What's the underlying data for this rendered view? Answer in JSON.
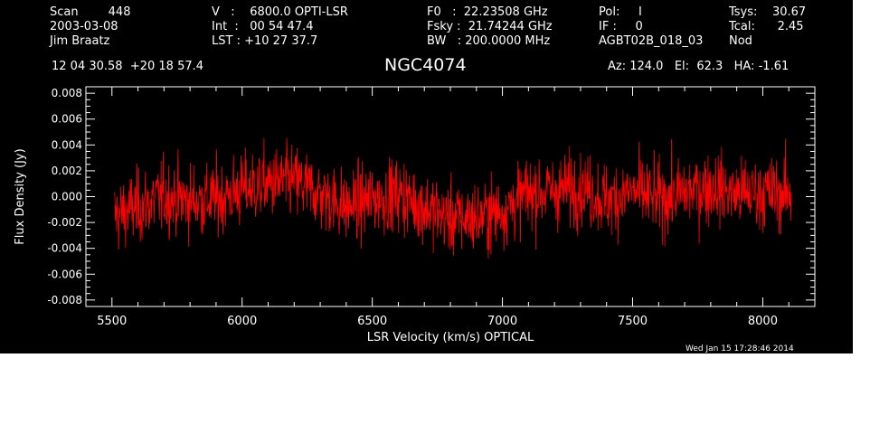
{
  "header": {
    "col1": [
      "Scan        448",
      "2003-03-08",
      "Jim Braatz"
    ],
    "col2": [
      "V   :    6800.0 OPTI-LSR",
      "Int  :   00 54 47.4",
      "LST : +10 27 37.7"
    ],
    "col3": [
      "F0   :  22.23508 GHz",
      "Fsky :  21.74244 GHz",
      "BW   : 200.0000 MHz"
    ],
    "col4": [
      "Pol:     I",
      "IF :     0",
      "AGBT02B_018_03"
    ],
    "col5": [
      "Tsys:    30.67",
      "Tcal:      2.45",
      "Nod"
    ],
    "coords": "12 04 30.58  +20 18 57.4",
    "source": "NGC4074",
    "pointing": "Az: 124.0   El:  62.3   HA: -1.61",
    "timestamp": "Wed Jan 15 17:28:46 2014"
  },
  "colors": {
    "background": "#000000",
    "foreground": "#ffffff",
    "series": "#ff0000"
  },
  "chart_data": {
    "type": "line",
    "xlabel": "LSR Velocity (km/s) OPTICAL",
    "ylabel": "Flux Density (Jy)",
    "xlim": [
      5400,
      8200
    ],
    "ylim": [
      -0.0085,
      0.0085
    ],
    "x_ticks": [
      5500,
      6000,
      6500,
      7000,
      7500,
      8000
    ],
    "y_ticks": [
      -0.008,
      -0.006,
      -0.004,
      -0.002,
      0.0,
      0.002,
      0.004,
      0.006,
      0.008
    ],
    "y_tick_labels": [
      "-0.008",
      "-0.006",
      "-0.004",
      "-0.002",
      "0.000",
      "0.002",
      "0.004",
      "0.006",
      "0.008"
    ],
    "grid": false,
    "series": [
      {
        "x_range": [
          5510,
          8110
        ],
        "noise_rms": 0.0014,
        "baseline": {
          "x": [
            5510,
            5600,
            5700,
            5800,
            5900,
            6000,
            6100,
            6200,
            6300,
            6400,
            6500,
            6600,
            6700,
            6800,
            6900,
            7000,
            7100,
            7200,
            7300,
            7400,
            7500,
            7600,
            7700,
            7800,
            7900,
            8000,
            8110
          ],
          "y": [
            -0.0015,
            -0.0008,
            0.0,
            -0.0003,
            -0.0002,
            0.0005,
            0.001,
            0.0012,
            0.0002,
            -0.0008,
            -0.0002,
            0.0002,
            -0.0008,
            -0.0017,
            -0.0016,
            -0.0011,
            0.0003,
            0.0004,
            0.0008,
            -0.0003,
            0.0004,
            -0.0002,
            0.0003,
            0.0008,
            0.0002,
            0.0003,
            0.0002
          ]
        }
      }
    ]
  }
}
